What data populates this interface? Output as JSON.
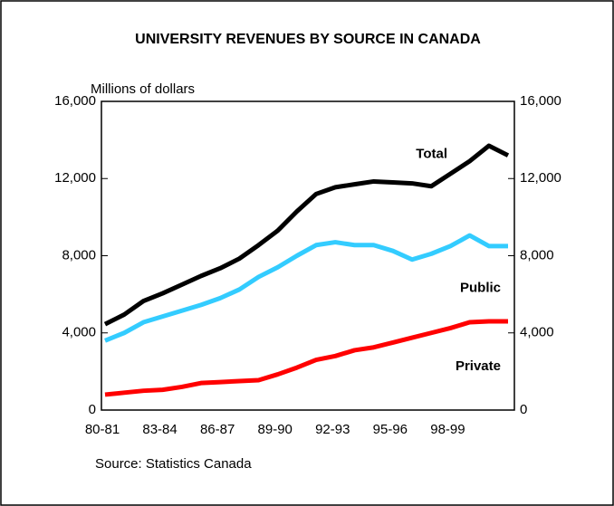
{
  "chart_data": {
    "type": "line",
    "title": "UNIVERSITY REVENUES BY SOURCE IN CANADA",
    "y_label": "Millions of dollars",
    "source": "Source: Statistics Canada",
    "categories": [
      "80-81",
      null,
      null,
      "83-84",
      null,
      null,
      "86-87",
      null,
      null,
      "89-90",
      null,
      null,
      "92-93",
      null,
      null,
      "95-96",
      null,
      null,
      "98-99",
      null,
      null,
      null
    ],
    "series": [
      {
        "name": "Total",
        "color": "#000000",
        "values": [
          4450,
          4950,
          5650,
          6050,
          6500,
          6950,
          7350,
          7850,
          8550,
          9300,
          10300,
          11200,
          11550,
          11700,
          11850,
          11800,
          11750,
          11600,
          12250,
          12900,
          13700,
          13200
        ]
      },
      {
        "name": "Public",
        "color": "#33ccff",
        "values": [
          3600,
          4000,
          4550,
          4850,
          5150,
          5450,
          5800,
          6250,
          6900,
          7400,
          8000,
          8550,
          8700,
          8550,
          8550,
          8250,
          7800,
          8100,
          8500,
          9050,
          8500,
          8500
        ]
      },
      {
        "name": "Private",
        "color": "#ff0000",
        "values": [
          800,
          900,
          1000,
          1050,
          1200,
          1400,
          1450,
          1500,
          1550,
          1850,
          2200,
          2600,
          2800,
          3100,
          3250,
          3500,
          3750,
          4000,
          4250,
          4550,
          4600,
          4600
        ]
      }
    ],
    "ylim": [
      0,
      16000
    ],
    "yticks": [
      0,
      {
        "value": 4000,
        "label": "4,000"
      },
      {
        "value": 8000,
        "label": "8,000"
      },
      {
        "value": 12000,
        "label": "12,000"
      },
      {
        "value": 16000,
        "label": "16,000"
      }
    ],
    "y2lim": [
      0,
      16000
    ],
    "y2ticks": [
      0,
      {
        "value": 4000,
        "label": "4,000"
      },
      {
        "value": 8000,
        "label": "8,000"
      },
      {
        "value": 12000,
        "label": "12,000"
      },
      {
        "value": 16000,
        "label": "16,000"
      }
    ]
  }
}
